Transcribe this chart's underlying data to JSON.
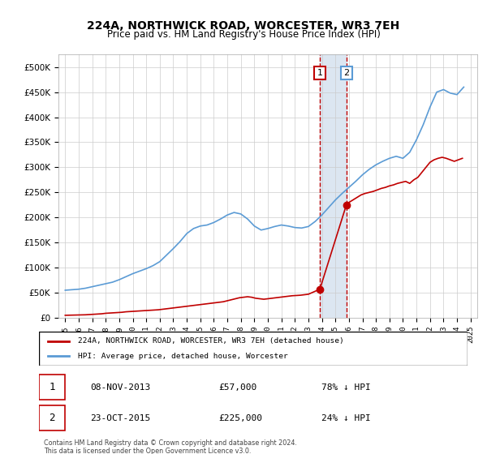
{
  "title": "224A, NORTHWICK ROAD, WORCESTER, WR3 7EH",
  "subtitle": "Price paid vs. HM Land Registry's House Price Index (HPI)",
  "legend_entry1": "224A, NORTHWICK ROAD, WORCESTER, WR3 7EH (detached house)",
  "legend_entry2": "HPI: Average price, detached house, Worcester",
  "transaction1_date": "08-NOV-2013",
  "transaction1_price": "£57,000",
  "transaction1_hpi": "78% ↓ HPI",
  "transaction2_date": "23-OCT-2015",
  "transaction2_price": "£225,000",
  "transaction2_hpi": "24% ↓ HPI",
  "footnote": "Contains HM Land Registry data © Crown copyright and database right 2024.\nThis data is licensed under the Open Government Licence v3.0.",
  "hpi_color": "#5b9bd5",
  "price_color": "#c00000",
  "highlight_color": "#dce6f1",
  "transaction1_year": 2013.85,
  "transaction2_year": 2015.81,
  "ylim_max": 525000,
  "ylabel_format": "K",
  "hpi_data": {
    "years": [
      1995,
      1995.5,
      1996,
      1996.5,
      1997,
      1997.5,
      1998,
      1998.5,
      1999,
      1999.5,
      2000,
      2000.5,
      2001,
      2001.5,
      2002,
      2002.5,
      2003,
      2003.5,
      2004,
      2004.5,
      2005,
      2005.5,
      2006,
      2006.5,
      2007,
      2007.5,
      2008,
      2008.5,
      2009,
      2009.5,
      2010,
      2010.5,
      2011,
      2011.5,
      2012,
      2012.5,
      2013,
      2013.5,
      2014,
      2014.5,
      2015,
      2015.5,
      2016,
      2016.5,
      2017,
      2017.5,
      2018,
      2018.5,
      2019,
      2019.5,
      2020,
      2020.5,
      2021,
      2021.5,
      2022,
      2022.5,
      2023,
      2023.5,
      2024,
      2024.5
    ],
    "values": [
      55000,
      56000,
      57000,
      59000,
      62000,
      65000,
      68000,
      71000,
      76000,
      82000,
      88000,
      93000,
      98000,
      104000,
      112000,
      125000,
      138000,
      152000,
      168000,
      178000,
      183000,
      185000,
      190000,
      197000,
      205000,
      210000,
      207000,
      197000,
      183000,
      175000,
      178000,
      182000,
      185000,
      183000,
      180000,
      179000,
      182000,
      192000,
      205000,
      220000,
      235000,
      248000,
      260000,
      272000,
      285000,
      296000,
      305000,
      312000,
      318000,
      322000,
      318000,
      330000,
      355000,
      385000,
      420000,
      450000,
      455000,
      448000,
      445000,
      460000
    ]
  },
  "price_paid_data": {
    "years": [
      1995,
      1995.3,
      1995.6,
      1995.9,
      1996.2,
      1996.5,
      1996.8,
      1997.1,
      1997.4,
      1997.7,
      1998.0,
      1998.3,
      1998.6,
      1998.9,
      1999.2,
      1999.5,
      1999.8,
      2000.1,
      2000.4,
      2000.7,
      2001.0,
      2001.3,
      2001.6,
      2001.9,
      2002.2,
      2002.5,
      2002.8,
      2003.1,
      2003.4,
      2003.7,
      2004.0,
      2004.3,
      2004.6,
      2004.9,
      2005.2,
      2005.5,
      2005.8,
      2006.1,
      2006.4,
      2006.7,
      2007.0,
      2007.3,
      2007.6,
      2007.9,
      2008.2,
      2008.5,
      2008.8,
      2009.1,
      2009.4,
      2009.7,
      2010.0,
      2010.3,
      2010.6,
      2010.9,
      2011.2,
      2011.5,
      2011.8,
      2012.1,
      2012.4,
      2012.7,
      2013.0,
      2013.85,
      2015.81,
      2016.0,
      2016.3,
      2016.6,
      2016.9,
      2017.2,
      2017.5,
      2017.8,
      2018.1,
      2018.4,
      2018.7,
      2019.0,
      2019.3,
      2019.6,
      2019.9,
      2020.2,
      2020.5,
      2020.8,
      2021.1,
      2021.4,
      2021.7,
      2022.0,
      2022.3,
      2022.6,
      2022.9,
      2023.2,
      2023.5,
      2023.8,
      2024.1,
      2024.4
    ],
    "values": [
      5000,
      5200,
      5400,
      5600,
      5800,
      6000,
      6500,
      7000,
      7500,
      8000,
      9000,
      9500,
      10000,
      10500,
      11000,
      12000,
      12500,
      13000,
      13500,
      14000,
      14500,
      15000,
      15500,
      16000,
      17000,
      18000,
      19000,
      20000,
      21000,
      22000,
      23000,
      24000,
      25000,
      26000,
      27000,
      28000,
      29000,
      30000,
      31000,
      32000,
      34000,
      36000,
      38000,
      40000,
      41000,
      42000,
      41000,
      39000,
      38000,
      37000,
      38000,
      39000,
      40000,
      41000,
      42000,
      43000,
      44000,
      44500,
      45000,
      46000,
      47000,
      57000,
      225000,
      230000,
      235000,
      240000,
      245000,
      248000,
      250000,
      252000,
      255000,
      258000,
      260000,
      263000,
      265000,
      268000,
      270000,
      272000,
      268000,
      275000,
      280000,
      290000,
      300000,
      310000,
      315000,
      318000,
      320000,
      318000,
      315000,
      312000,
      315000,
      318000
    ]
  }
}
